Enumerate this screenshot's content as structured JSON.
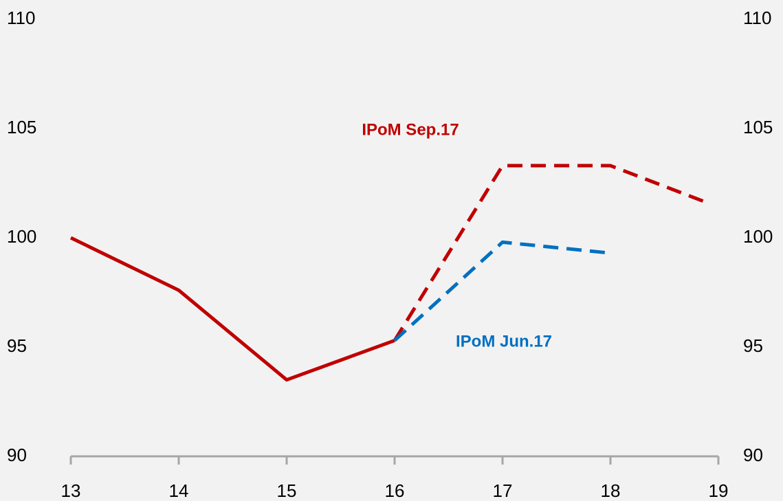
{
  "chart_data": {
    "type": "line",
    "xlim": [
      13,
      19
    ],
    "xticks": [
      13,
      14,
      15,
      16,
      17,
      18,
      19
    ],
    "ylim": [
      90,
      110
    ],
    "yticks": [
      90,
      95,
      100,
      105,
      110
    ],
    "y2lim": [
      90,
      110
    ],
    "y2ticks": [
      90,
      95,
      100,
      105,
      110
    ],
    "grid": false,
    "series": [
      {
        "color": "#c00000",
        "dashed": false,
        "x": [
          13,
          14,
          15,
          16
        ],
        "values": [
          100,
          97.6,
          93.5,
          95.3
        ]
      },
      {
        "name": "IPoM Sep.17",
        "color": "#c00000",
        "dashed": true,
        "x": [
          16,
          17,
          18,
          18.9
        ],
        "values": [
          95.3,
          103.3,
          103.3,
          101.6
        ]
      },
      {
        "name": "IPoM Jun.17",
        "color": "#0070c0",
        "dashed": true,
        "x": [
          16,
          17,
          18
        ],
        "values": [
          95.3,
          99.8,
          99.3
        ]
      }
    ]
  }
}
